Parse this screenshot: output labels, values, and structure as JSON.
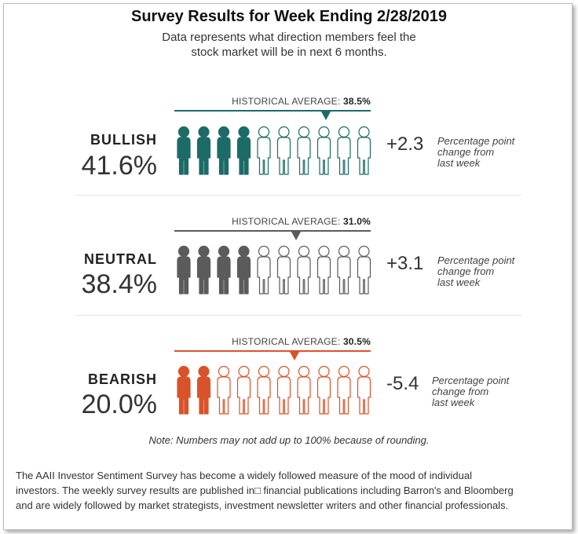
{
  "header": {
    "title": "Survey Results for Week Ending 2/28/2019",
    "subtitle_line1": "Data represents what direction members feel the",
    "subtitle_line2": "stock market will be in next 6 months."
  },
  "hist_label": "HISTORICAL AVERAGE:",
  "change_desc": {
    "line1": "Percentage point",
    "line2": "change from",
    "line3": "last week"
  },
  "chart_data": {
    "type": "table",
    "max_value": 100,
    "icon_count": 10,
    "rows": [
      {
        "label": "BULLISH",
        "percent": 41.6,
        "percent_text": "41.6%",
        "historical_average": 38.5,
        "historical_text": "38.5%",
        "change": 2.3,
        "change_text": "+2.3",
        "color": "#1c6b66"
      },
      {
        "label": "NEUTRAL",
        "percent": 38.4,
        "percent_text": "38.4%",
        "historical_average": 31.0,
        "historical_text": "31.0%",
        "change": 3.1,
        "change_text": "+3.1",
        "color": "#5b5b5b"
      },
      {
        "label": "BEARISH",
        "percent": 20.0,
        "percent_text": "20.0%",
        "historical_average": 30.5,
        "historical_text": "30.5%",
        "change": -5.4,
        "change_text": "-5.4",
        "color": "#d9532a"
      }
    ]
  },
  "note": "Note: Numbers may not add up to 100% because of rounding.",
  "footer": {
    "line1": "The AAII Investor Sentiment Survey has become a widely followed measure of the mood of individual",
    "line2": "investors. The weekly survey results are published in□ financial publications including Barron's and Bloomberg",
    "line3": "and are widely followed by market strategists, investment newsletter writers and other financial professionals."
  }
}
